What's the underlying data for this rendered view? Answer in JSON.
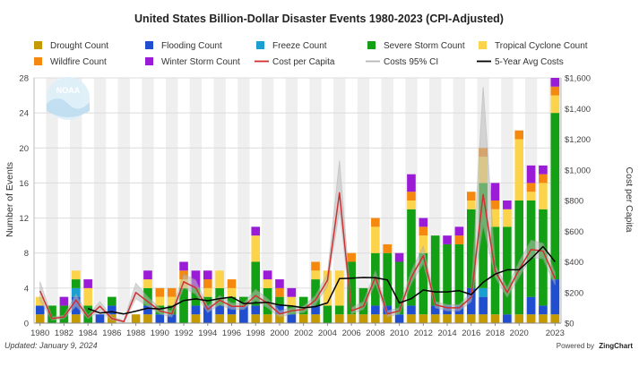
{
  "chart_data": {
    "type": "bar",
    "title": "United States Billion-Dollar Disaster Events 1980-2023 (CPI-Adjusted)",
    "ylabel": "Number of Events",
    "y2label": "Cost per Capita",
    "ylim": [
      0,
      28
    ],
    "y2lim": [
      0,
      1600
    ],
    "yticks": [
      "0",
      "4",
      "8",
      "12",
      "16",
      "20",
      "24",
      "28"
    ],
    "y2ticks": [
      "$0",
      "$200",
      "$400",
      "$600",
      "$800",
      "$1,000",
      "$1,200",
      "$1,400",
      "$1,600"
    ],
    "xticks": [
      "1980",
      "1982",
      "1984",
      "1986",
      "1988",
      "1990",
      "1992",
      "1994",
      "1996",
      "1998",
      "2000",
      "2002",
      "2004",
      "2006",
      "2008",
      "2010",
      "2012",
      "2014",
      "2016",
      "2018",
      "2020",
      "2023"
    ],
    "x": [
      1980,
      1981,
      1982,
      1983,
      1984,
      1985,
      1986,
      1987,
      1988,
      1989,
      1990,
      1991,
      1992,
      1993,
      1994,
      1995,
      1996,
      1997,
      1998,
      1999,
      2000,
      2001,
      2002,
      2003,
      2004,
      2005,
      2006,
      2007,
      2008,
      2009,
      2010,
      2011,
      2012,
      2013,
      2014,
      2015,
      2016,
      2017,
      2018,
      2019,
      2020,
      2021,
      2022,
      2023
    ],
    "legend_position": "top",
    "footer_left": "Updated: January 9, 2024",
    "footer_right_prefix": "Powered by",
    "footer_right_brand": "ZingChart",
    "logo_text": "NOAA",
    "grid": true,
    "series": [
      {
        "name": "Drought Count",
        "color": "#c49a00",
        "values": [
          1,
          0,
          0,
          1,
          0,
          0,
          1,
          0,
          1,
          1,
          0,
          0,
          0,
          1,
          0,
          1,
          1,
          0,
          1,
          1,
          1,
          0,
          1,
          1,
          0,
          1,
          1,
          1,
          1,
          1,
          0,
          1,
          1,
          1,
          1,
          1,
          1,
          1,
          1,
          0,
          1,
          1,
          1,
          1
        ]
      },
      {
        "name": "Flooding Count",
        "color": "#1f4fd0",
        "values": [
          1,
          0,
          0,
          2,
          0,
          1,
          1,
          0,
          0,
          1,
          1,
          1,
          0,
          1,
          2,
          1,
          1,
          2,
          1,
          0,
          1,
          1,
          0,
          1,
          0,
          0,
          0,
          0,
          1,
          1,
          1,
          1,
          0,
          1,
          1,
          1,
          3,
          2,
          0,
          1,
          0,
          2,
          1,
          4
        ]
      },
      {
        "name": "Freeze Count",
        "color": "#1a9fd0",
        "values": [
          0,
          0,
          0,
          1,
          0,
          0,
          0,
          0,
          0,
          0,
          0,
          0,
          0,
          0,
          0,
          0,
          0,
          0,
          0,
          0,
          0,
          0,
          0,
          0,
          0,
          0,
          0,
          0,
          0,
          0,
          0,
          0,
          0,
          0,
          0,
          0,
          0,
          1,
          0,
          0,
          0,
          0,
          0,
          0
        ]
      },
      {
        "name": "Severe Storm Count",
        "color": "#14a014",
        "values": [
          0,
          2,
          2,
          1,
          2,
          0,
          1,
          0,
          0,
          2,
          1,
          1,
          4,
          2,
          1,
          2,
          1,
          1,
          5,
          3,
          1,
          1,
          2,
          3,
          2,
          1,
          6,
          3,
          6,
          6,
          6,
          11,
          7,
          8,
          7,
          7,
          9,
          12,
          10,
          10,
          13,
          11,
          11,
          19
        ]
      },
      {
        "name": "Tropical Cyclone Count",
        "color": "#fcd44c",
        "values": [
          1,
          0,
          0,
          1,
          2,
          0,
          0,
          0,
          0,
          1,
          1,
          1,
          1,
          0,
          1,
          2,
          1,
          0,
          3,
          1,
          0,
          1,
          0,
          1,
          4,
          4,
          0,
          0,
          3,
          0,
          0,
          1,
          2,
          0,
          0,
          0,
          1,
          3,
          2,
          2,
          7,
          1,
          3,
          2
        ]
      },
      {
        "name": "Wildfire Count",
        "color": "#f5880f",
        "values": [
          0,
          0,
          0,
          0,
          0,
          0,
          0,
          0,
          0,
          0,
          1,
          1,
          1,
          0,
          1,
          0,
          1,
          0,
          0,
          0,
          1,
          0,
          0,
          1,
          0,
          0,
          1,
          0,
          1,
          1,
          0,
          1,
          1,
          0,
          0,
          1,
          1,
          1,
          1,
          0,
          1,
          1,
          1,
          1
        ]
      },
      {
        "name": "Winter Storm Count",
        "color": "#9a1cd6",
        "values": [
          0,
          0,
          1,
          0,
          1,
          0,
          0,
          0,
          0,
          1,
          0,
          0,
          1,
          2,
          1,
          0,
          0,
          0,
          1,
          1,
          1,
          1,
          0,
          0,
          0,
          0,
          0,
          0,
          0,
          0,
          1,
          2,
          1,
          0,
          1,
          1,
          0,
          0,
          2,
          1,
          0,
          2,
          1,
          1
        ]
      }
    ],
    "lines": [
      {
        "name": "Cost per Capita",
        "color": "#d03030",
        "values": [
          210,
          30,
          40,
          150,
          40,
          110,
          30,
          10,
          200,
          140,
          80,
          60,
          270,
          230,
          90,
          150,
          110,
          110,
          180,
          130,
          60,
          80,
          90,
          150,
          280,
          850,
          80,
          110,
          300,
          60,
          80,
          300,
          440,
          120,
          100,
          100,
          170,
          840,
          340,
          200,
          350,
          480,
          470,
          290
        ]
      },
      {
        "name": "Costs 95% CI",
        "color": "#b8b8b8",
        "band": true,
        "lower": [
          150,
          20,
          30,
          110,
          30,
          80,
          20,
          5,
          160,
          110,
          60,
          40,
          230,
          190,
          70,
          120,
          90,
          90,
          150,
          100,
          40,
          60,
          70,
          120,
          240,
          740,
          60,
          90,
          260,
          40,
          60,
          260,
          390,
          100,
          80,
          80,
          140,
          640,
          300,
          170,
          300,
          430,
          420,
          250
        ],
        "upper": [
          270,
          40,
          50,
          190,
          50,
          140,
          40,
          15,
          260,
          170,
          100,
          80,
          320,
          280,
          110,
          180,
          130,
          130,
          220,
          160,
          80,
          100,
          110,
          180,
          320,
          1060,
          100,
          140,
          340,
          80,
          100,
          340,
          500,
          140,
          120,
          120,
          200,
          1540,
          380,
          230,
          400,
          540,
          520,
          330
        ]
      },
      {
        "name": "5-Year Avg Costs",
        "color": "#000000",
        "values": [
          null,
          null,
          null,
          null,
          95,
          66,
          74,
          60,
          78,
          98,
          92,
          106,
          148,
          158,
          146,
          160,
          170,
          128,
          132,
          136,
          118,
          112,
          100,
          108,
          132,
          290,
          294,
          298,
          296,
          282,
          132,
          160,
          216,
          204,
          204,
          212,
          186,
          266,
          320,
          348,
          348,
          420,
          500,
          400
        ]
      }
    ]
  }
}
